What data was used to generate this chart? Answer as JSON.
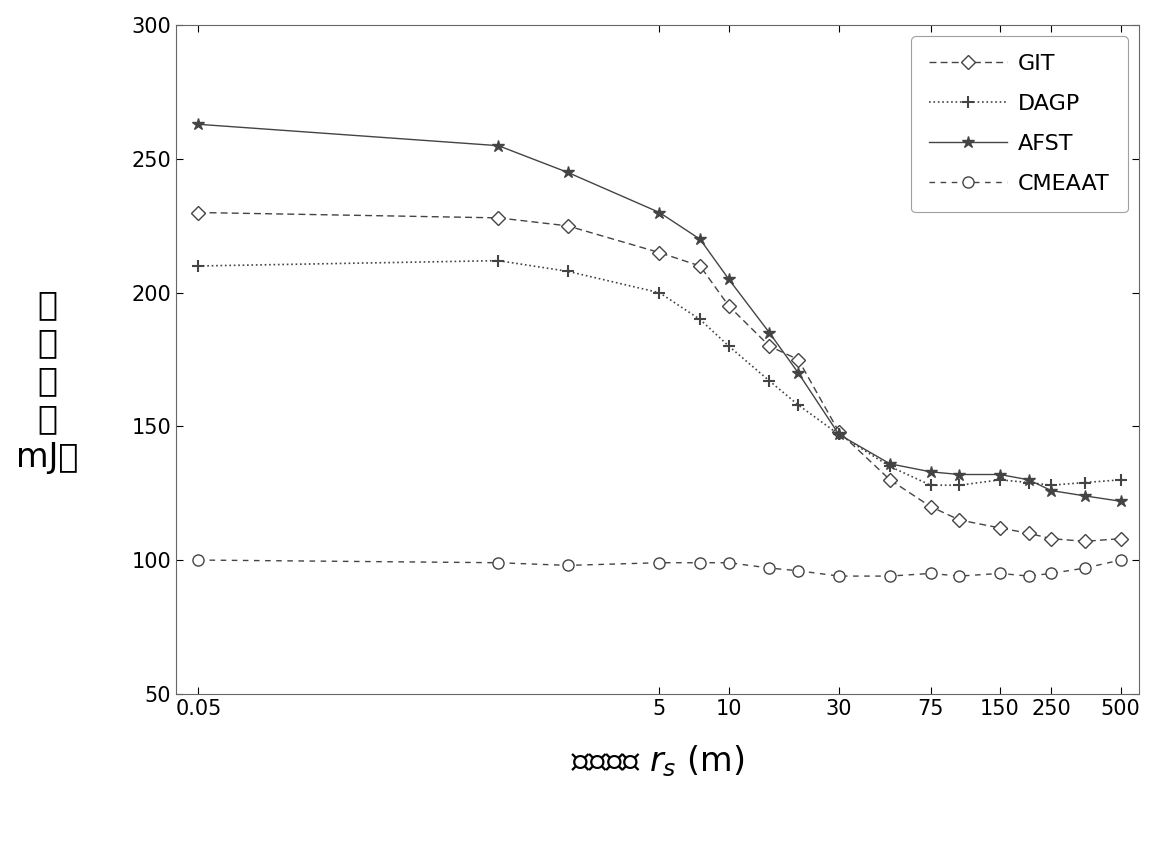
{
  "x_ticks": [
    0.05,
    5,
    10,
    30,
    75,
    150,
    250,
    500
  ],
  "x_tick_labels": [
    "0.05",
    "5",
    "10",
    "30",
    "75",
    "150",
    "250",
    "500"
  ],
  "x_values": [
    0.05,
    1,
    2,
    5,
    7.5,
    10,
    15,
    20,
    30,
    50,
    75,
    100,
    150,
    200,
    250,
    350,
    500
  ],
  "GIT": [
    230,
    228,
    225,
    215,
    210,
    195,
    180,
    175,
    148,
    130,
    120,
    115,
    112,
    110,
    108,
    107,
    108
  ],
  "DAGP": [
    210,
    212,
    208,
    200,
    190,
    180,
    167,
    158,
    147,
    135,
    128,
    128,
    130,
    129,
    128,
    129,
    130
  ],
  "AFST": [
    263,
    255,
    245,
    230,
    220,
    205,
    185,
    170,
    147,
    136,
    133,
    132,
    132,
    130,
    126,
    124,
    122
  ],
  "CMEAAT": [
    100,
    99,
    98,
    99,
    99,
    99,
    97,
    96,
    94,
    94,
    95,
    94,
    95,
    94,
    95,
    97,
    100
  ],
  "ylim": [
    50,
    300
  ],
  "y_ticks": [
    50,
    100,
    150,
    200,
    250,
    300
  ],
  "xlabel": "相关半径 r_s (m)",
  "legend_labels": [
    "GIT",
    "DAGP",
    "AFST",
    "CMEAAT"
  ],
  "line_color": "#444444",
  "bg_color": "#ffffff",
  "tick_fontsize": 15,
  "label_fontsize": 24,
  "legend_fontsize": 16
}
